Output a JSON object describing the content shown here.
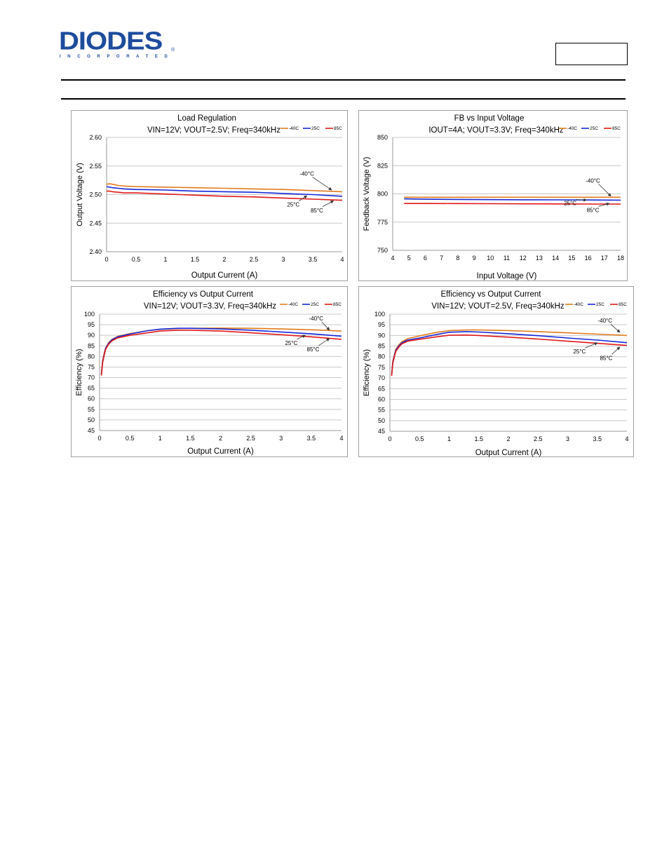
{
  "header": {
    "logo_text": "DIODES",
    "logo_subtext": "INCORPORATED",
    "logo_reg": "®"
  },
  "chart_data": [
    {
      "type": "line",
      "title": "Load Regulation",
      "subtitle": "VIN=12V; VOUT=2.5V; Freq=340kHz",
      "xlabel": "Output Current (A)",
      "ylabel": "Output Voltage (V)",
      "xlim": [
        0,
        4
      ],
      "ylim": [
        2.4,
        2.6
      ],
      "x_ticks": [
        "0",
        "0.5",
        "1",
        "1.5",
        "2",
        "2.5",
        "3",
        "3.5",
        "4"
      ],
      "y_ticks": [
        "2.40",
        "2.45",
        "2.50",
        "2.55",
        "2.60"
      ],
      "grid": true,
      "legend_position": "top-right",
      "series": [
        {
          "name": "-40C",
          "color": "#e07b1a",
          "x": [
            0,
            0.05,
            0.1,
            0.2,
            0.3,
            0.5,
            1,
            1.5,
            2,
            2.5,
            3,
            3.5,
            4
          ],
          "y": [
            2.518,
            2.519,
            2.518,
            2.516,
            2.515,
            2.514,
            2.513,
            2.512,
            2.511,
            2.51,
            2.509,
            2.507,
            2.505
          ]
        },
        {
          "name": "25C",
          "color": "#1428d8",
          "x": [
            0,
            0.05,
            0.1,
            0.2,
            0.3,
            0.5,
            1,
            1.5,
            2,
            2.5,
            3,
            3.5,
            4
          ],
          "y": [
            2.514,
            2.513,
            2.512,
            2.511,
            2.51,
            2.509,
            2.508,
            2.506,
            2.505,
            2.504,
            2.502,
            2.5,
            2.497
          ]
        },
        {
          "name": "85C",
          "color": "#e01818",
          "x": [
            0,
            0.05,
            0.1,
            0.2,
            0.3,
            0.5,
            1,
            1.5,
            2,
            2.5,
            3,
            3.5,
            4
          ],
          "y": [
            2.506,
            2.506,
            2.505,
            2.504,
            2.503,
            2.503,
            2.501,
            2.499,
            2.497,
            2.496,
            2.494,
            2.492,
            2.49
          ]
        }
      ],
      "annotations": [
        {
          "text": "-40°C",
          "tx": 3.4,
          "ty": 2.533,
          "ax": 3.82,
          "ay": 2.508,
          "anchor": "middle"
        },
        {
          "text": "25°C",
          "tx": 3.17,
          "ty": 2.479,
          "ax": 3.4,
          "ay": 2.498,
          "anchor": "middle"
        },
        {
          "text": "85°C",
          "tx": 3.57,
          "ty": 2.469,
          "ax": 3.85,
          "ay": 2.489,
          "anchor": "middle"
        }
      ]
    },
    {
      "type": "line",
      "title": "FB vs Input Voltage",
      "subtitle": "IOUT=4A; VOUT=3.3V; Freq=340kHz",
      "xlabel": "Input Voltage (V)",
      "ylabel": "Feedback Voltage (V)",
      "xlim": [
        4,
        18
      ],
      "ylim": [
        750,
        850
      ],
      "x_ticks": [
        "4",
        "5",
        "6",
        "7",
        "8",
        "9",
        "10",
        "11",
        "12",
        "13",
        "14",
        "15",
        "16",
        "17",
        "18"
      ],
      "y_ticks": [
        "750",
        "775",
        "800",
        "825",
        "850"
      ],
      "grid": true,
      "legend_position": "top-right",
      "series": [
        {
          "name": "-40C",
          "color": "#e07b1a",
          "x": [
            4.7,
            6,
            8,
            10,
            12,
            14,
            16,
            18
          ],
          "y": [
            797,
            797,
            797,
            797,
            797,
            797,
            797,
            797
          ]
        },
        {
          "name": "25C",
          "color": "#1428d8",
          "x": [
            4.7,
            5,
            6,
            8,
            10,
            12,
            14,
            16,
            18
          ],
          "y": [
            795.6,
            795.5,
            795.3,
            795.1,
            794.9,
            794.8,
            794.7,
            794.6,
            794.5
          ]
        },
        {
          "name": "85C",
          "color": "#e01818",
          "x": [
            4.7,
            6,
            8,
            10,
            12,
            14,
            16,
            18
          ],
          "y": [
            791.5,
            791.5,
            791.4,
            791.3,
            791.2,
            791.1,
            791.0,
            791.0
          ]
        }
      ],
      "annotations": [
        {
          "text": "-40°C",
          "tx": 16.3,
          "ty": 810,
          "ax": 17.4,
          "ay": 798,
          "anchor": "middle"
        },
        {
          "text": "25°C",
          "tx": 14.9,
          "ty": 790,
          "ax": 15.9,
          "ay": 794.5,
          "anchor": "middle"
        },
        {
          "text": "85°C",
          "tx": 16.3,
          "ty": 784,
          "ax": 17.3,
          "ay": 791.5,
          "anchor": "middle"
        }
      ]
    },
    {
      "type": "line",
      "title": "Efficiency vs Output Current",
      "subtitle": "VIN=12V; VOUT=3.3V, Freq=340kHz",
      "xlabel": "Output Current (A)",
      "ylabel": "Efficiency (%)",
      "xlim": [
        0,
        4
      ],
      "ylim": [
        45,
        100
      ],
      "x_ticks": [
        "0",
        "0.5",
        "1",
        "1.5",
        "2",
        "2.5",
        "3",
        "3.5",
        "4"
      ],
      "y_ticks": [
        "45",
        "50",
        "55",
        "60",
        "65",
        "70",
        "75",
        "80",
        "85",
        "90",
        "95",
        "100"
      ],
      "grid": true,
      "legend_position": "top-right",
      "series": [
        {
          "name": "-40C",
          "color": "#e07b1a",
          "x": [
            0.03,
            0.05,
            0.08,
            0.1,
            0.15,
            0.2,
            0.3,
            0.5,
            0.8,
            1,
            1.3,
            1.5,
            2,
            2.5,
            3,
            3.5,
            4
          ],
          "y": [
            72,
            78,
            82,
            84,
            86.5,
            88,
            89.5,
            90.8,
            92.2,
            92.8,
            93.2,
            93.3,
            93.4,
            93.3,
            93.0,
            92.6,
            92.0
          ]
        },
        {
          "name": "25C",
          "color": "#1428d8",
          "x": [
            0.03,
            0.05,
            0.08,
            0.1,
            0.15,
            0.2,
            0.3,
            0.5,
            0.8,
            1,
            1.3,
            1.5,
            2,
            2.5,
            3,
            3.5,
            4
          ],
          "y": [
            71.5,
            77.5,
            81.5,
            83.8,
            86.2,
            87.8,
            89.3,
            90.6,
            92.2,
            92.9,
            93.3,
            93.3,
            93.0,
            92.4,
            91.6,
            90.7,
            89.6
          ]
        },
        {
          "name": "85C",
          "color": "#e01818",
          "x": [
            0.03,
            0.05,
            0.08,
            0.1,
            0.15,
            0.2,
            0.3,
            0.5,
            0.8,
            1,
            1.3,
            1.5,
            2,
            2.5,
            3,
            3.5,
            4
          ],
          "y": [
            71,
            77,
            81,
            83.3,
            85.8,
            87.3,
            88.8,
            90.0,
            91.2,
            92.0,
            92.4,
            92.4,
            92.0,
            91.2,
            90.3,
            89.3,
            88.1
          ]
        }
      ],
      "annotations": [
        {
          "text": "-40°C",
          "tx": 3.58,
          "ty": 97,
          "ax": 3.8,
          "ay": 92.5,
          "anchor": "middle"
        },
        {
          "text": "25°C",
          "tx": 3.17,
          "ty": 85.5,
          "ax": 3.4,
          "ay": 90,
          "anchor": "middle"
        },
        {
          "text": "85°C",
          "tx": 3.53,
          "ty": 82.5,
          "ax": 3.8,
          "ay": 88.5,
          "anchor": "middle"
        }
      ]
    },
    {
      "type": "line",
      "title": "Efficiency vs Output Current",
      "subtitle": "VIN=12V; VOUT=2.5V, Freq=340kHz",
      "xlabel": "Output Current (A)",
      "ylabel": "Efficiency (%)",
      "xlim": [
        0,
        4
      ],
      "ylim": [
        45,
        100
      ],
      "x_ticks": [
        "0",
        "0.5",
        "1",
        "1.5",
        "2",
        "2.5",
        "3",
        "3.5",
        "4"
      ],
      "y_ticks": [
        "45",
        "50",
        "55",
        "60",
        "65",
        "70",
        "75",
        "80",
        "85",
        "90",
        "95",
        "100"
      ],
      "grid": true,
      "legend_position": "top-right",
      "series": [
        {
          "name": "-40C",
          "color": "#e07b1a",
          "x": [
            0.03,
            0.05,
            0.08,
            0.1,
            0.15,
            0.2,
            0.3,
            0.5,
            0.8,
            1,
            1.3,
            1.5,
            2,
            2.5,
            3,
            3.5,
            4
          ],
          "y": [
            72,
            78,
            81.5,
            83.5,
            85.5,
            87,
            88.5,
            89.8,
            91.5,
            92.3,
            92.6,
            92.6,
            92.3,
            91.8,
            91.2,
            90.6,
            90.0
          ]
        },
        {
          "name": "25C",
          "color": "#1428d8",
          "x": [
            0.03,
            0.05,
            0.08,
            0.1,
            0.15,
            0.2,
            0.3,
            0.5,
            0.8,
            1,
            1.3,
            1.5,
            2,
            2.5,
            3,
            3.5,
            4
          ],
          "y": [
            71.5,
            77.5,
            81,
            83,
            85,
            86.5,
            87.8,
            88.8,
            90.5,
            91.5,
            91.8,
            91.6,
            90.8,
            89.9,
            88.8,
            87.8,
            86.6
          ]
        },
        {
          "name": "85C",
          "color": "#e01818",
          "x": [
            0.03,
            0.05,
            0.08,
            0.1,
            0.15,
            0.2,
            0.3,
            0.5,
            0.8,
            1,
            1.3,
            1.5,
            2,
            2.5,
            3,
            3.5,
            4
          ],
          "y": [
            71,
            77,
            80.5,
            82.5,
            84.5,
            86,
            87.3,
            88.2,
            89.4,
            90.1,
            90.2,
            90.0,
            89.2,
            88.3,
            87.3,
            86.3,
            85.3
          ]
        }
      ],
      "annotations": [
        {
          "text": "-40°C",
          "tx": 3.63,
          "ty": 96,
          "ax": 3.88,
          "ay": 91.5,
          "anchor": "middle"
        },
        {
          "text": "25°C",
          "tx": 3.2,
          "ty": 81.5,
          "ax": 3.5,
          "ay": 86.5,
          "anchor": "middle"
        },
        {
          "text": "85°C",
          "tx": 3.65,
          "ty": 78.5,
          "ax": 3.88,
          "ay": 84.5,
          "anchor": "middle"
        }
      ]
    }
  ]
}
